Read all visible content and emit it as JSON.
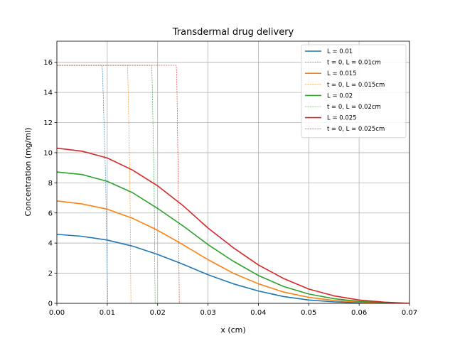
{
  "chart_data": {
    "type": "line",
    "title": "Transdermal drug delivery",
    "xlabel": "x (cm)",
    "ylabel": "Concentration (mg/ml)",
    "xlim": [
      0,
      0.07
    ],
    "ylim": [
      0,
      17.4
    ],
    "xticks": [
      "0.00",
      "0.01",
      "0.02",
      "0.03",
      "0.04",
      "0.05",
      "0.06",
      "0.07"
    ],
    "yticks": [
      "0",
      "2",
      "4",
      "6",
      "8",
      "10",
      "12",
      "14",
      "16"
    ],
    "grid": true,
    "legend_position": "top-right",
    "series": [
      {
        "name": "L = 0.01",
        "color": "#1f77b4",
        "style": "solid",
        "points": [
          [
            0,
            4.58
          ],
          [
            0.005,
            4.45
          ],
          [
            0.01,
            4.2
          ],
          [
            0.015,
            3.8
          ],
          [
            0.02,
            3.25
          ],
          [
            0.025,
            2.6
          ],
          [
            0.03,
            1.9
          ],
          [
            0.035,
            1.3
          ],
          [
            0.04,
            0.82
          ],
          [
            0.045,
            0.45
          ],
          [
            0.05,
            0.22
          ],
          [
            0.055,
            0.1
          ],
          [
            0.06,
            0.04
          ],
          [
            0.065,
            0.01
          ],
          [
            0.07,
            0
          ]
        ]
      },
      {
        "name": "t = 0, L = 0.01cm",
        "color": "#1f77b4",
        "style": "dashed",
        "points": [
          [
            0,
            15.8
          ],
          [
            0.009,
            15.8
          ],
          [
            0.0091,
            15.0
          ],
          [
            0.0097,
            8.0
          ],
          [
            0.0101,
            0
          ],
          [
            0.07,
            0
          ]
        ]
      },
      {
        "name": "L = 0.015",
        "color": "#ff7f0e",
        "style": "solid",
        "points": [
          [
            0,
            6.8
          ],
          [
            0.005,
            6.6
          ],
          [
            0.01,
            6.25
          ],
          [
            0.015,
            5.65
          ],
          [
            0.02,
            4.85
          ],
          [
            0.025,
            3.9
          ],
          [
            0.03,
            2.9
          ],
          [
            0.035,
            2.0
          ],
          [
            0.04,
            1.3
          ],
          [
            0.045,
            0.75
          ],
          [
            0.05,
            0.4
          ],
          [
            0.055,
            0.19
          ],
          [
            0.06,
            0.08
          ],
          [
            0.065,
            0.02
          ],
          [
            0.07,
            0
          ]
        ]
      },
      {
        "name": "t = 0, L = 0.015cm",
        "color": "#ff7f0e",
        "style": "dashed",
        "points": [
          [
            0,
            15.8
          ],
          [
            0.014,
            15.8
          ],
          [
            0.0141,
            15.0
          ],
          [
            0.0145,
            8.0
          ],
          [
            0.0147,
            0
          ],
          [
            0.07,
            0
          ]
        ]
      },
      {
        "name": "L = 0.02",
        "color": "#2ca02c",
        "style": "solid",
        "points": [
          [
            0,
            8.72
          ],
          [
            0.005,
            8.55
          ],
          [
            0.01,
            8.1
          ],
          [
            0.015,
            7.35
          ],
          [
            0.02,
            6.3
          ],
          [
            0.025,
            5.15
          ],
          [
            0.03,
            3.9
          ],
          [
            0.035,
            2.8
          ],
          [
            0.04,
            1.85
          ],
          [
            0.045,
            1.12
          ],
          [
            0.05,
            0.62
          ],
          [
            0.055,
            0.31
          ],
          [
            0.06,
            0.13
          ],
          [
            0.065,
            0.04
          ],
          [
            0.07,
            0
          ]
        ]
      },
      {
        "name": "t = 0, L = 0.02cm",
        "color": "#2ca02c",
        "style": "dashed",
        "points": [
          [
            0,
            15.8
          ],
          [
            0.0188,
            15.8
          ],
          [
            0.0189,
            15.0
          ],
          [
            0.0193,
            8.0
          ],
          [
            0.0195,
            0
          ],
          [
            0.07,
            0
          ]
        ]
      },
      {
        "name": "L = 0.025",
        "color": "#d62728",
        "style": "solid",
        "points": [
          [
            0,
            10.3
          ],
          [
            0.005,
            10.1
          ],
          [
            0.01,
            9.65
          ],
          [
            0.015,
            8.85
          ],
          [
            0.02,
            7.8
          ],
          [
            0.025,
            6.5
          ],
          [
            0.03,
            5.0
          ],
          [
            0.035,
            3.7
          ],
          [
            0.04,
            2.55
          ],
          [
            0.045,
            1.65
          ],
          [
            0.05,
            0.95
          ],
          [
            0.055,
            0.5
          ],
          [
            0.06,
            0.22
          ],
          [
            0.065,
            0.08
          ],
          [
            0.07,
            0
          ]
        ]
      },
      {
        "name": "t = 0, L = 0.025cm",
        "color": "#d62728",
        "style": "dashed",
        "points": [
          [
            0,
            15.8
          ],
          [
            0.0237,
            15.8
          ],
          [
            0.0238,
            15.0
          ],
          [
            0.0241,
            8.0
          ],
          [
            0.0243,
            0
          ],
          [
            0.07,
            0
          ]
        ]
      }
    ]
  }
}
